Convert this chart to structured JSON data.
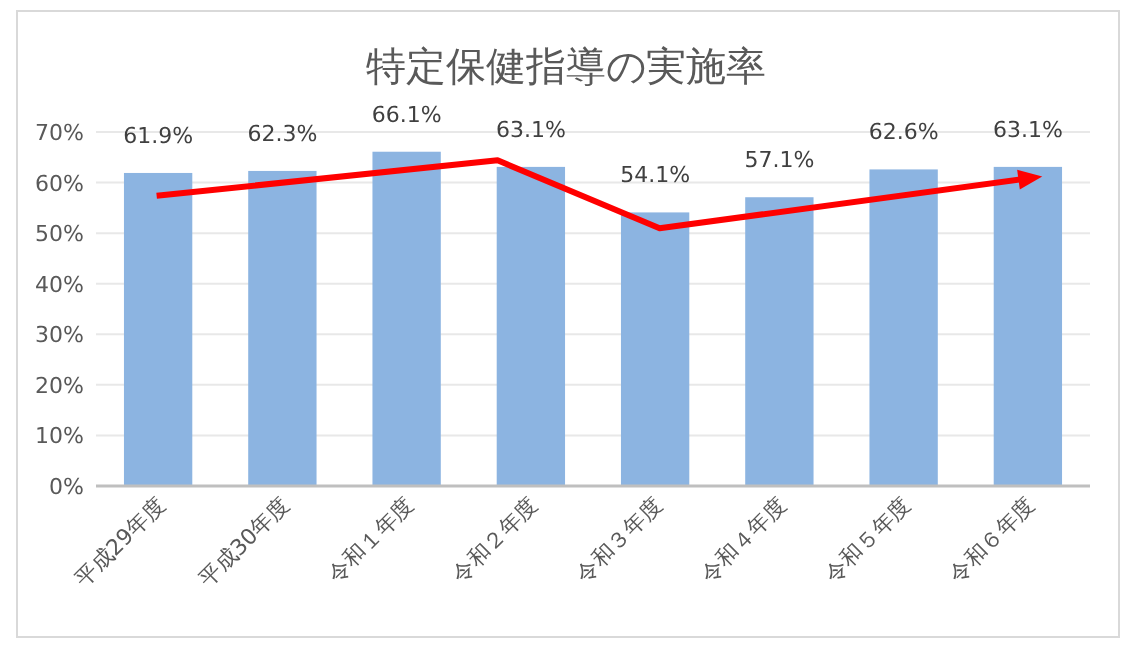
{
  "chart_data": {
    "type": "bar",
    "title": "特定保健指導の実施率",
    "categories": [
      "平成29年度",
      "平成30年度",
      "令和１年度",
      "令和２年度",
      "令和３年度",
      "令和４年度",
      "令和５年度",
      "令和６年度"
    ],
    "values": [
      61.9,
      62.3,
      66.1,
      63.1,
      54.1,
      57.1,
      62.6,
      63.1
    ],
    "value_labels": [
      "61.9%",
      "62.3%",
      "66.1%",
      "63.1%",
      "54.1%",
      "57.1%",
      "62.6%",
      "63.1%"
    ],
    "color": "#8cb4e1",
    "ylim": [
      0,
      70
    ],
    "yticks": [
      {
        "value": 0,
        "label": "0%"
      },
      {
        "value": 10,
        "label": "10%"
      },
      {
        "value": 20,
        "label": "20%"
      },
      {
        "value": 30,
        "label": "30%"
      },
      {
        "value": 40,
        "label": "40%"
      },
      {
        "value": 50,
        "label": "50%"
      },
      {
        "value": 60,
        "label": "60%"
      },
      {
        "value": 70,
        "label": "70%"
      }
    ],
    "grid": "y"
  }
}
